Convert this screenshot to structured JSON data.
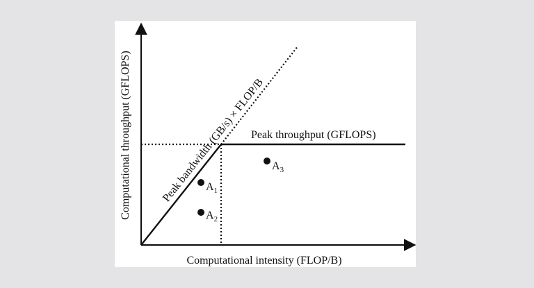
{
  "figure": {
    "background": "#e4e4e6",
    "panel_color": "#ffffff",
    "ink": "#111111",
    "x_axis_label": "Computational intensity (FLOP/B)",
    "y_axis_label": "Computational throughput (GFLOPS)",
    "roofline_slope_label": "Peak bandwidth (GB/s) × FLOP/B",
    "roofline_flat_label": "Peak throughput (GFLOPS)",
    "points": [
      {
        "id": "A1",
        "base": "A",
        "sub": "1"
      },
      {
        "id": "A2",
        "base": "A",
        "sub": "2"
      },
      {
        "id": "A3",
        "base": "A",
        "sub": "3"
      }
    ]
  }
}
